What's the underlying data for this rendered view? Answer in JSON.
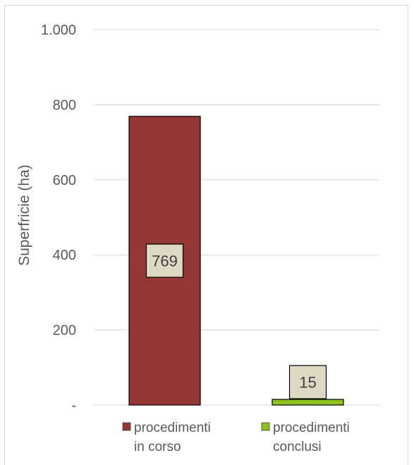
{
  "chart_data": {
    "type": "bar",
    "categories": [
      "procedimenti in corso",
      "procedimenti conclusi"
    ],
    "values": [
      769,
      15
    ],
    "colors": [
      "#943634",
      "#8dc21f"
    ],
    "label_box_color": "#ddd9c3",
    "ylabel": "Superfricie  (ha)",
    "ylim": [
      0,
      1000
    ],
    "yticks": [
      0,
      200,
      400,
      600,
      800,
      1000
    ],
    "ytick_labels": [
      "-",
      "200",
      "400",
      "600",
      "800",
      "1.000"
    ],
    "data_labels": [
      "769",
      "15"
    ],
    "grid": true,
    "legend": {
      "position": "bottom",
      "entries": [
        {
          "lines": [
            "procedimenti",
            "in corso"
          ],
          "color": "#943634"
        },
        {
          "lines": [
            "procedimenti",
            "conclusi"
          ],
          "color": "#8dc21f"
        }
      ]
    }
  }
}
